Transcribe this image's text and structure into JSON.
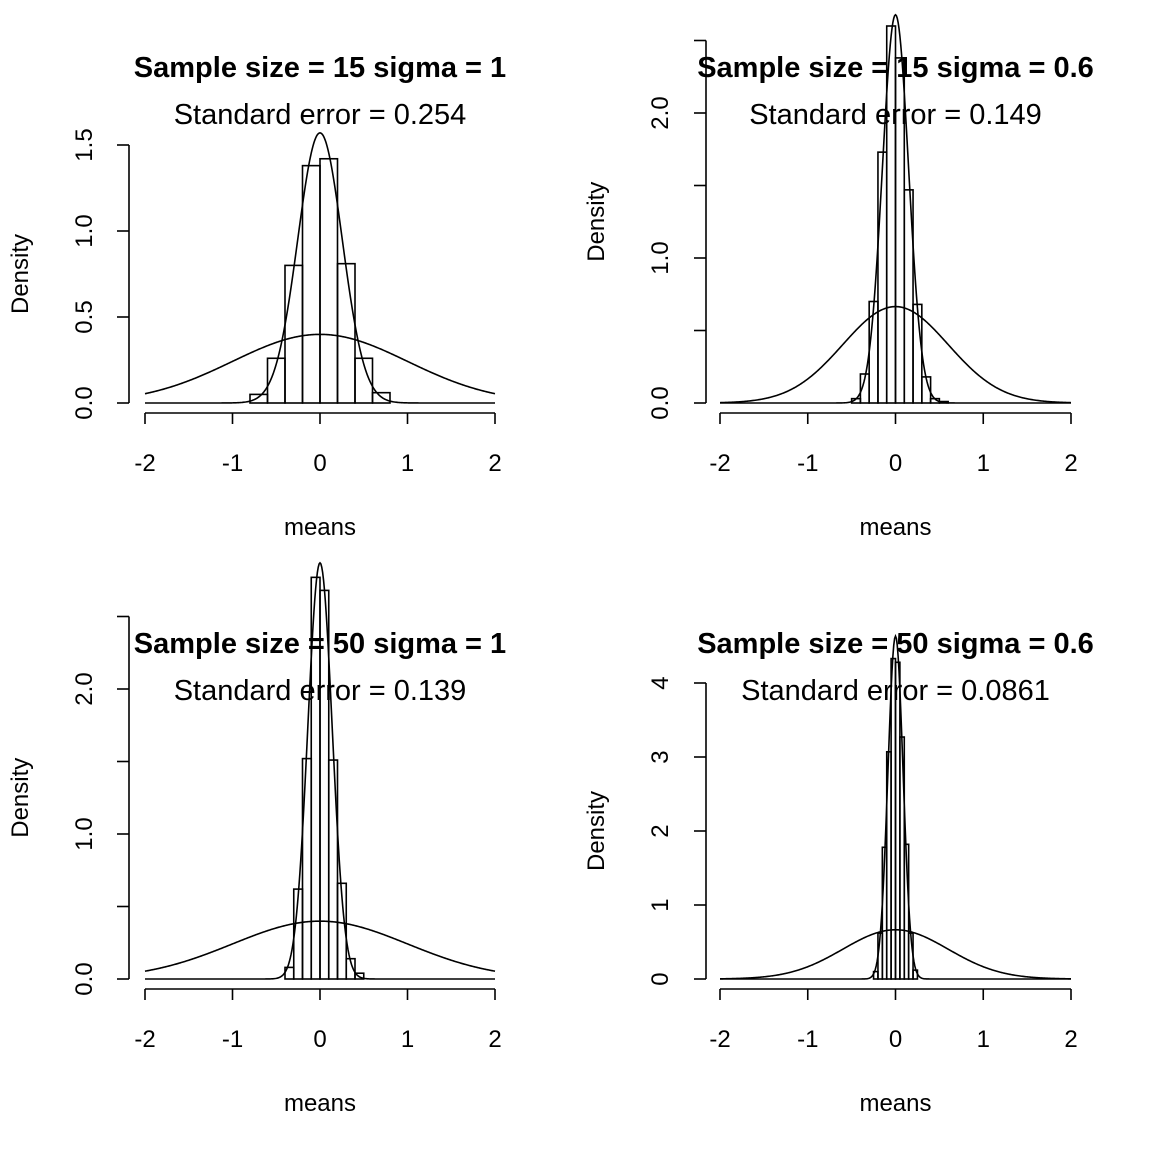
{
  "chart_data": [
    {
      "type": "histogram",
      "title": "Sample size =  15  sigma =  1",
      "subtitle": "Standard error =  0.254",
      "xlabel": "means",
      "ylabel": "Density",
      "xlim": [
        -2,
        2
      ],
      "ylim": [
        0,
        1.5
      ],
      "x_ticks": [
        "-2",
        "-1",
        "0",
        "1",
        "2"
      ],
      "y_ticks": [
        "0.0",
        "0.5",
        "1.0",
        "1.5"
      ],
      "y_tick_values": [
        0,
        0.5,
        1.0,
        1.5
      ],
      "y_minor_ticks": [],
      "bin_edges": [
        -0.8,
        -0.6,
        -0.4,
        -0.2,
        0.0,
        0.2,
        0.4,
        0.6,
        0.8
      ],
      "bin_densities": [
        0.05,
        0.26,
        0.8,
        1.38,
        1.42,
        0.81,
        0.26,
        0.06
      ],
      "curves": [
        {
          "kind": "normal",
          "mean": 0,
          "sd": 0.254
        },
        {
          "kind": "normal",
          "mean": 0,
          "sd": 1
        }
      ]
    },
    {
      "type": "histogram",
      "title": "Sample size =  15  sigma =  0.6",
      "subtitle": "Standard error =  0.149",
      "xlabel": "means",
      "ylabel": "Density",
      "xlim": [
        -2,
        2
      ],
      "ylim": [
        0,
        2.5
      ],
      "x_ticks": [
        "-2",
        "-1",
        "0",
        "1",
        "2"
      ],
      "y_ticks": [
        "0.0",
        "1.0",
        "2.0"
      ],
      "y_tick_values": [
        0,
        1.0,
        2.0
      ],
      "y_minor_ticks": [
        0.5,
        1.5,
        2.5
      ],
      "bin_edges": [
        -0.5,
        -0.4,
        -0.3,
        -0.2,
        -0.1,
        0.0,
        0.1,
        0.2,
        0.3,
        0.4,
        0.5,
        0.6
      ],
      "bin_densities": [
        0.03,
        0.2,
        0.7,
        1.73,
        2.6,
        2.38,
        1.47,
        0.68,
        0.18,
        0.03,
        0.01
      ],
      "curves": [
        {
          "kind": "normal",
          "mean": 0,
          "sd": 0.149
        },
        {
          "kind": "normal",
          "mean": 0,
          "sd": 0.6
        }
      ]
    },
    {
      "type": "histogram",
      "title": "Sample size =  50  sigma =  1",
      "subtitle": "Standard error =  0.139",
      "xlabel": "means",
      "ylabel": "Density",
      "xlim": [
        -2,
        2
      ],
      "ylim": [
        0,
        2.5
      ],
      "x_ticks": [
        "-2",
        "-1",
        "0",
        "1",
        "2"
      ],
      "y_ticks": [
        "0.0",
        "1.0",
        "2.0"
      ],
      "y_tick_values": [
        0,
        1.0,
        2.0
      ],
      "y_minor_ticks": [
        0.5,
        1.5,
        2.5
      ],
      "bin_edges": [
        -0.4,
        -0.3,
        -0.2,
        -0.1,
        0.0,
        0.1,
        0.2,
        0.3,
        0.4,
        0.5
      ],
      "bin_densities": [
        0.08,
        0.62,
        1.52,
        2.77,
        2.68,
        1.51,
        0.66,
        0.14,
        0.04
      ],
      "curves": [
        {
          "kind": "normal",
          "mean": 0,
          "sd": 0.139
        },
        {
          "kind": "normal",
          "mean": 0,
          "sd": 1
        }
      ]
    },
    {
      "type": "histogram",
      "title": "Sample size =  50  sigma =  0.6",
      "subtitle": "Standard error =  0.0861",
      "xlabel": "means",
      "ylabel": "Density",
      "xlim": [
        -2,
        2
      ],
      "ylim": [
        0,
        4.2
      ],
      "x_ticks": [
        "-2",
        "-1",
        "0",
        "1",
        "2"
      ],
      "y_ticks": [
        "0",
        "1",
        "2",
        "3",
        "4"
      ],
      "y_tick_values": [
        0,
        1,
        2,
        3,
        4
      ],
      "y_minor_ticks": [],
      "bin_edges": [
        -0.25,
        -0.2,
        -0.15,
        -0.1,
        -0.05,
        0.0,
        0.05,
        0.1,
        0.15,
        0.2,
        0.25
      ],
      "bin_densities": [
        0.1,
        0.62,
        1.78,
        3.07,
        4.33,
        4.28,
        3.27,
        1.82,
        0.62,
        0.12
      ],
      "curves": [
        {
          "kind": "normal",
          "mean": 0,
          "sd": 0.0861
        },
        {
          "kind": "normal",
          "mean": 0,
          "sd": 0.6
        }
      ]
    }
  ]
}
